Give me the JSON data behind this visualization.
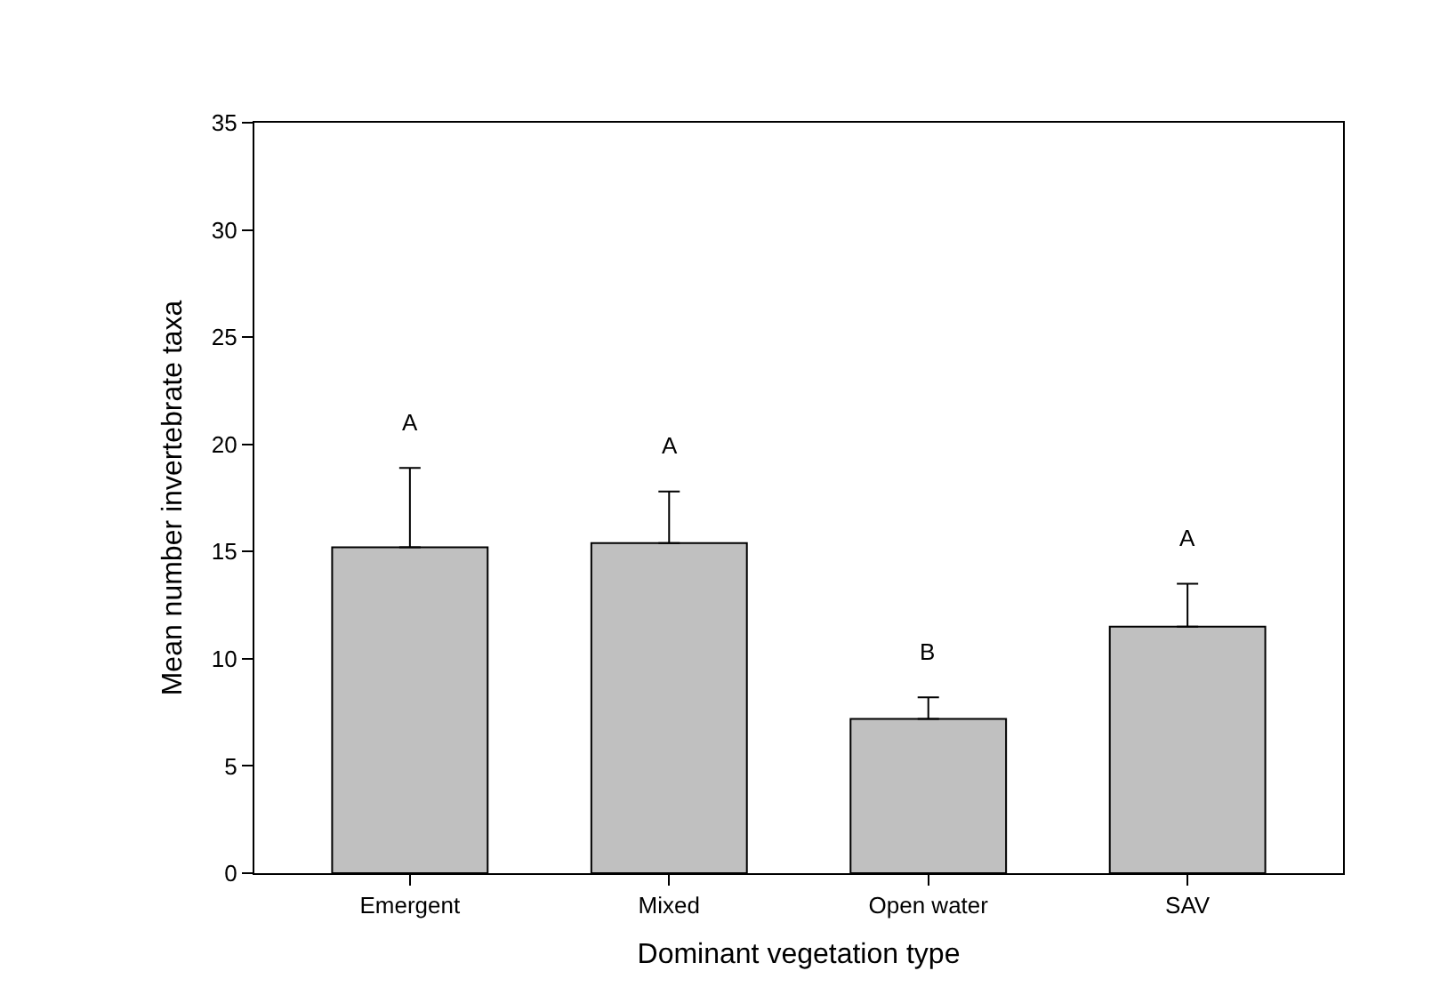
{
  "chart_data": {
    "type": "bar",
    "xlabel": "Dominant vegetation type",
    "ylabel": "Mean number invertebrate taxa",
    "categories": [
      "Emergent",
      "Mixed",
      "Open water",
      "SAV"
    ],
    "values": [
      15.2,
      15.4,
      7.2,
      11.5
    ],
    "errors": [
      [
        15.2,
        18.9
      ],
      [
        15.4,
        17.8
      ],
      [
        7.2,
        8.2
      ],
      [
        11.5,
        13.5
      ]
    ],
    "color": "#c0c0c0",
    "ylim": [
      0,
      35
    ],
    "yticks": [
      0,
      5,
      10,
      15,
      20,
      25,
      30,
      35
    ],
    "grid": false,
    "legend": false,
    "annotations": [
      "A",
      "A",
      "B",
      "A"
    ]
  }
}
